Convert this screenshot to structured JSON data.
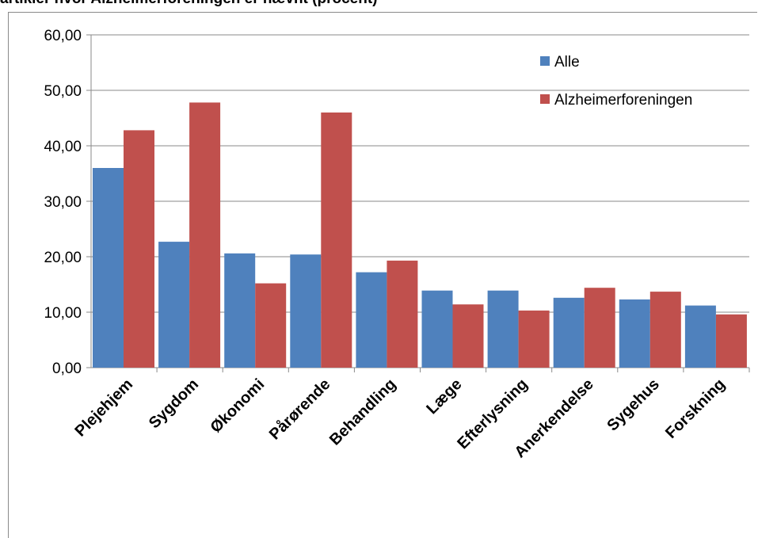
{
  "chart_data": {
    "type": "bar",
    "title": "artikler hvor Alzheimerforeningen er nævnt (procent)",
    "categories": [
      "Plejehjem",
      "Sygdom",
      "Økonomi",
      "Pårørende",
      "Behandling",
      "Læge",
      "Efterlysning",
      "Anerkendelse",
      "Sygehus",
      "Forskning"
    ],
    "series": [
      {
        "name": "Alle",
        "color": "#4f81bd",
        "values": [
          36.0,
          22.7,
          20.6,
          20.4,
          17.2,
          13.9,
          13.9,
          12.6,
          12.3,
          11.2
        ]
      },
      {
        "name": "Alzheimerforeningen",
        "color": "#c0504d",
        "values": [
          42.8,
          47.8,
          15.2,
          46.0,
          19.3,
          11.4,
          10.3,
          14.4,
          13.7,
          9.6
        ]
      }
    ],
    "ylim": [
      0,
      60
    ],
    "yticks": [
      "0,00",
      "10,00",
      "20,00",
      "30,00",
      "40,00",
      "50,00",
      "60,00"
    ],
    "xlabel": "",
    "ylabel": "",
    "grid": true,
    "legend": "top-right"
  }
}
